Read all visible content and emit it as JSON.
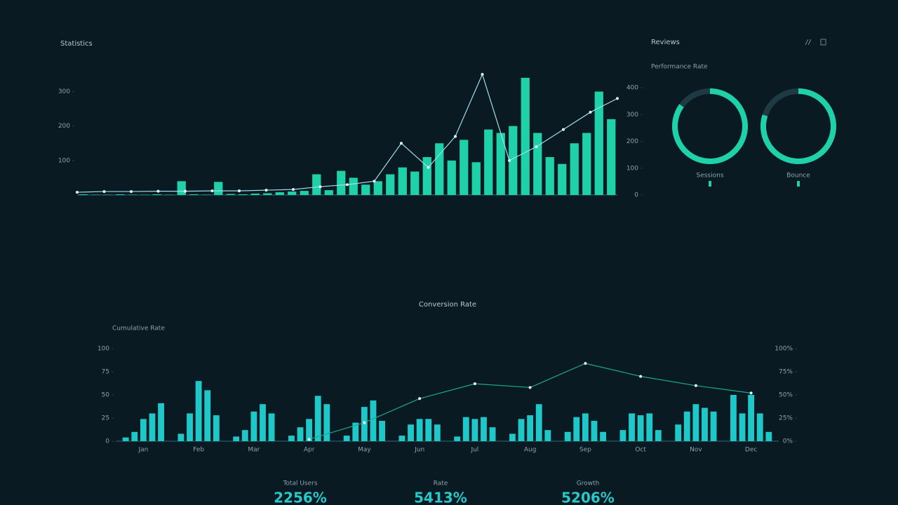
{
  "header": {
    "title": "Statistics"
  },
  "sidebar": {
    "title": "Reviews",
    "subtitle": "Performance Rate",
    "donuts": [
      {
        "label": "Sessions",
        "value": 85,
        "color": "#1fd1a8"
      },
      {
        "label": "Bounce",
        "value": 80,
        "color": "#1fd1a8"
      }
    ]
  },
  "chart_data": [
    {
      "type": "bar",
      "ylim": [
        0,
        350
      ],
      "yticks": [
        100,
        200,
        300
      ],
      "y2lim": [
        0,
        450
      ],
      "y2ticks": [
        0,
        100,
        200,
        300,
        400
      ],
      "series": [
        {
          "color": "#1fd1a8",
          "values": [
            2,
            1,
            1,
            2,
            1,
            1,
            2,
            1,
            40,
            2,
            1,
            38,
            3,
            2,
            4,
            5,
            8,
            10,
            12,
            60,
            14,
            70,
            50,
            30,
            40,
            60,
            80,
            68,
            110,
            150,
            100,
            160,
            95,
            190,
            180,
            200,
            340,
            180,
            110,
            90,
            150,
            180,
            300,
            220
          ]
        },
        {
          "color": "#9fdcec",
          "values": [
            8,
            10,
            10,
            11,
            11,
            12,
            12,
            14,
            16,
            24,
            30,
            40,
            150,
            80,
            170,
            350,
            100,
            140,
            190,
            240,
            280
          ]
        }
      ]
    },
    {
      "type": "bar",
      "title": "Conversion Rate",
      "subtitle": "Cumulative Rate",
      "categories": [
        "Jan",
        "Feb",
        "Mar",
        "Apr",
        "May",
        "Jun",
        "Jul",
        "Aug",
        "Sep",
        "Oct",
        "Nov",
        "Dec"
      ],
      "ylim": [
        0,
        100
      ],
      "yticks": [
        0,
        25,
        50,
        75,
        100
      ],
      "y2lim": [
        0,
        100
      ],
      "y2ticks": [
        {
          "value": 0,
          "label": "0%"
        },
        {
          "value": 25,
          "label": "25%"
        },
        {
          "value": 50,
          "label": "50%"
        },
        {
          "value": 75,
          "label": "75%"
        },
        {
          "value": 100,
          "label": "100%"
        }
      ],
      "series": [
        {
          "color": "#1fc8c8",
          "values": [
            4,
            8,
            5,
            6,
            6,
            6,
            5,
            8,
            10,
            12,
            18,
            50
          ]
        },
        {
          "color": "#1fc8c8",
          "values": [
            10,
            30,
            12,
            15,
            20,
            18,
            26,
            24,
            26,
            30,
            32,
            30
          ]
        },
        {
          "color": "#1fc8c8",
          "values": [
            24,
            65,
            32,
            24,
            37,
            24,
            24,
            28,
            30,
            28,
            40,
            50
          ]
        },
        {
          "color": "#1fc8c8",
          "values": [
            30,
            55,
            40,
            49,
            44,
            24,
            26,
            40,
            22,
            30,
            36,
            30
          ]
        },
        {
          "color": "#1fc8c8",
          "values": [
            41,
            28,
            30,
            40,
            22,
            18,
            15,
            12,
            10,
            12,
            32,
            10
          ]
        },
        {
          "color": "#1aa890",
          "axis": "y2",
          "values": [
            null,
            null,
            null,
            2,
            20,
            46,
            62,
            58,
            84,
            70,
            60,
            52
          ]
        }
      ]
    }
  ],
  "stats": [
    {
      "label": "Total Users",
      "value": "2256%"
    },
    {
      "label": "Rate",
      "value": "5413%"
    },
    {
      "label": "Growth",
      "value": "5206%"
    }
  ]
}
